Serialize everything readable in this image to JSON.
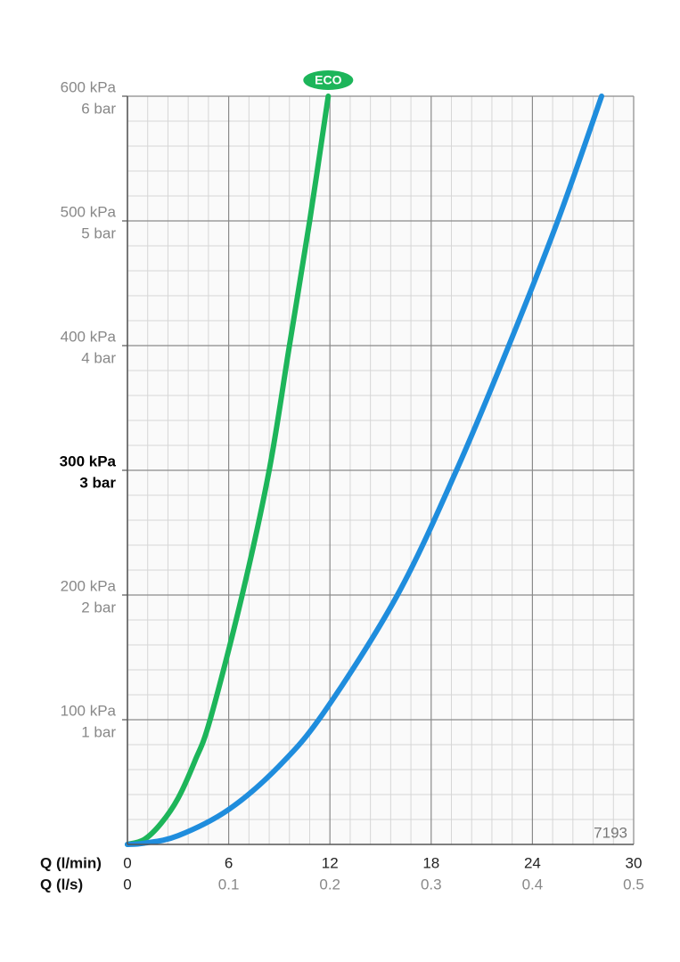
{
  "chart_data": {
    "type": "line",
    "xlabel": "Q (l/min)",
    "x2label": "Q (l/s)",
    "xlim": [
      0,
      30
    ],
    "xticks": [
      0,
      6,
      12,
      18,
      24,
      30
    ],
    "x2lim": [
      0,
      0.5
    ],
    "x2ticks": [
      0,
      0.1,
      0.2,
      0.3,
      0.4,
      0.5
    ],
    "ylim": [
      0,
      600
    ],
    "yticks": [
      {
        "value": 100,
        "label": "100 kPa"
      },
      {
        "value": 200,
        "label": "200 kPa"
      },
      {
        "value": 300,
        "label": "300 kPa"
      },
      {
        "value": 400,
        "label": "400 kPa"
      },
      {
        "value": 500,
        "label": "500 kPa"
      },
      {
        "value": 600,
        "label": "600 kPa"
      }
    ],
    "y2ticks": [
      {
        "value": 100,
        "label": "1 bar"
      },
      {
        "value": 200,
        "label": "2 bar"
      },
      {
        "value": 300,
        "label": "3 bar"
      },
      {
        "value": 400,
        "label": "4 bar"
      },
      {
        "value": 500,
        "label": "5 bar"
      },
      {
        "value": 600,
        "label": "6 bar"
      }
    ],
    "emphasized_ytick": 300,
    "grid": true,
    "minor_divisions": 5,
    "series": [
      {
        "name": "ECO",
        "color": "#1db55a",
        "x": [
          0,
          1,
          2,
          3,
          4,
          4.9,
          6.8,
          8.4,
          9.6,
          10.8,
          11.9
        ],
        "values": [
          0,
          4,
          17,
          37,
          67,
          100,
          200,
          300,
          400,
          500,
          600
        ]
      },
      {
        "color": "#1f8ddd",
        "x": [
          0,
          1,
          3,
          6,
          9,
          11.7,
          16,
          19.5,
          22.6,
          25.5,
          28.1
        ],
        "values": [
          0,
          1,
          7,
          28,
          63,
          107,
          200,
          300,
          400,
          500,
          600
        ]
      }
    ],
    "annotation": "7193"
  }
}
